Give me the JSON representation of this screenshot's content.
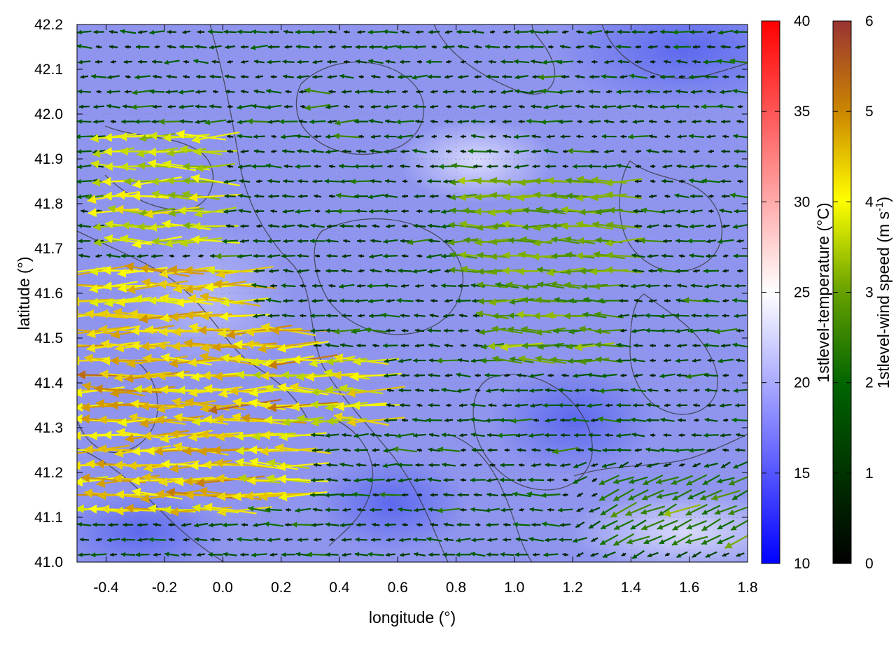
{
  "chart_data": {
    "type": "heatmap",
    "title": "",
    "xlabel": "longitude (°)",
    "ylabel": "latitude (°)",
    "xlim": [
      -0.5,
      1.8
    ],
    "ylim": [
      41.0,
      42.2
    ],
    "x_ticks": [
      "-0.4",
      "-0.2",
      "0.0",
      "0.2",
      "0.4",
      "0.6",
      "0.8",
      "1.0",
      "1.2",
      "1.4",
      "1.6",
      "1.8"
    ],
    "x_tick_values": [
      -0.4,
      -0.2,
      0.0,
      0.2,
      0.4,
      0.6,
      0.8,
      1.0,
      1.2,
      1.4,
      1.6,
      1.8
    ],
    "y_ticks": [
      "41.0",
      "41.1",
      "41.2",
      "41.3",
      "41.4",
      "41.5",
      "41.6",
      "41.7",
      "41.8",
      "41.9",
      "42.0",
      "42.1",
      "42.2"
    ],
    "y_tick_values": [
      41.0,
      41.1,
      41.2,
      41.3,
      41.4,
      41.5,
      41.6,
      41.7,
      41.8,
      41.9,
      42.0,
      42.1,
      42.2
    ],
    "grid": true,
    "temperature": {
      "label": "1stlevel-temperature (°C)",
      "range": [
        10,
        40
      ],
      "ticks": [
        "10",
        "15",
        "20",
        "25",
        "30",
        "35",
        "40"
      ],
      "tick_values": [
        10,
        15,
        20,
        25,
        30,
        35,
        40
      ],
      "colors": [
        "#0000ff",
        "#ffffff",
        "#ff0000"
      ],
      "field_note": "mostly 15-22 °C across the domain, coolest in the northeast"
    },
    "wind_speed": {
      "label_main": "1stlevel-wind speed (m s",
      "label_sup": "-1",
      "label_end": ")",
      "range": [
        0,
        6
      ],
      "ticks": [
        "0",
        "1",
        "2",
        "3",
        "4",
        "5",
        "6"
      ],
      "tick_values": [
        0,
        1,
        2,
        3,
        4,
        5,
        6
      ],
      "colors": [
        "#000000",
        "#006400",
        "#66a000",
        "#ffff00",
        "#cc8800",
        "#993333"
      ]
    },
    "wind_vectors_note": "predominantly westward (easterly) wind; strongest 3-5 m s-1 west of 0.4°E between 41.1 and 41.7°N",
    "wind_regions": [
      {
        "x": [
          -0.5,
          0.1
        ],
        "y": [
          41.1,
          41.65
        ],
        "speed": 4.1
      },
      {
        "x": [
          -0.5,
          0.3
        ],
        "y": [
          41.15,
          41.55
        ],
        "speed": 3.7
      },
      {
        "x": [
          -0.4,
          0.0
        ],
        "y": [
          41.7,
          41.95
        ],
        "speed": 3.2
      },
      {
        "x": [
          0.3,
          0.55
        ],
        "y": [
          41.3,
          41.45
        ],
        "speed": 3.6
      },
      {
        "x": [
          0.8,
          1.4
        ],
        "y": [
          41.65,
          41.85
        ],
        "speed": 2.4
      },
      {
        "x": [
          0.9,
          1.35
        ],
        "y": [
          41.45,
          41.65
        ],
        "speed": 2.0
      },
      {
        "x": [
          1.3,
          1.8
        ],
        "y": [
          41.05,
          41.2
        ],
        "speed": 1.6
      }
    ]
  }
}
